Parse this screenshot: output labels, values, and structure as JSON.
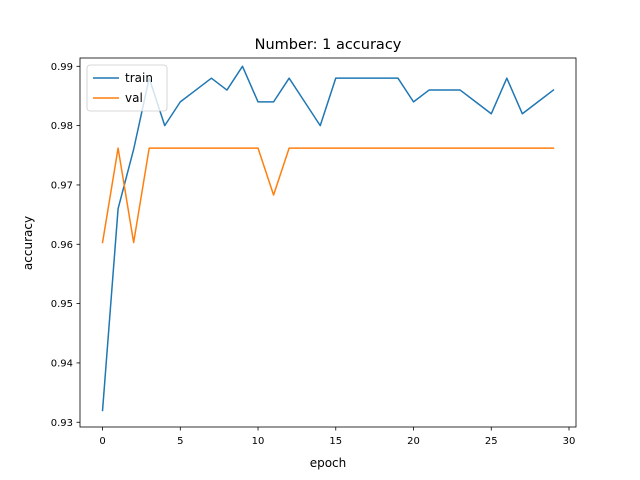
{
  "chart_data": {
    "type": "line",
    "title": "Number: 1 accuracy",
    "xlabel": "epoch",
    "ylabel": "accuracy",
    "xlim": [
      -1.45,
      30.45
    ],
    "ylim": [
      0.9292,
      0.9914
    ],
    "xticks": [
      0,
      5,
      10,
      15,
      20,
      25,
      30
    ],
    "yticks": [
      0.93,
      0.94,
      0.95,
      0.96,
      0.97,
      0.98,
      0.99
    ],
    "ytick_labels": [
      "0.93",
      "0.94",
      "0.95",
      "0.96",
      "0.97",
      "0.98",
      "0.99"
    ],
    "grid": false,
    "legend_position": "upper-left",
    "x": [
      0,
      1,
      2,
      3,
      4,
      5,
      6,
      7,
      8,
      9,
      10,
      11,
      12,
      13,
      14,
      15,
      16,
      17,
      18,
      19,
      20,
      21,
      22,
      23,
      24,
      25,
      26,
      27,
      28,
      29
    ],
    "series": [
      {
        "name": "train",
        "color": "#1f77b4",
        "values": [
          0.932,
          0.966,
          0.976,
          0.988,
          0.98,
          0.984,
          0.986,
          0.988,
          0.986,
          0.99,
          0.984,
          0.984,
          0.988,
          0.984,
          0.98,
          0.988,
          0.988,
          0.988,
          0.988,
          0.988,
          0.984,
          0.986,
          0.986,
          0.986,
          0.984,
          0.982,
          0.988,
          0.982,
          0.984,
          0.986
        ]
      },
      {
        "name": "val",
        "color": "#ff7f0e",
        "values": [
          0.9603,
          0.9762,
          0.9603,
          0.9762,
          0.9762,
          0.9762,
          0.9762,
          0.9762,
          0.9762,
          0.9762,
          0.9762,
          0.9683,
          0.9762,
          0.9762,
          0.9762,
          0.9762,
          0.9762,
          0.9762,
          0.9762,
          0.9762,
          0.9762,
          0.9762,
          0.9762,
          0.9762,
          0.9762,
          0.9762,
          0.9762,
          0.9762,
          0.9762,
          0.9762
        ]
      }
    ]
  }
}
